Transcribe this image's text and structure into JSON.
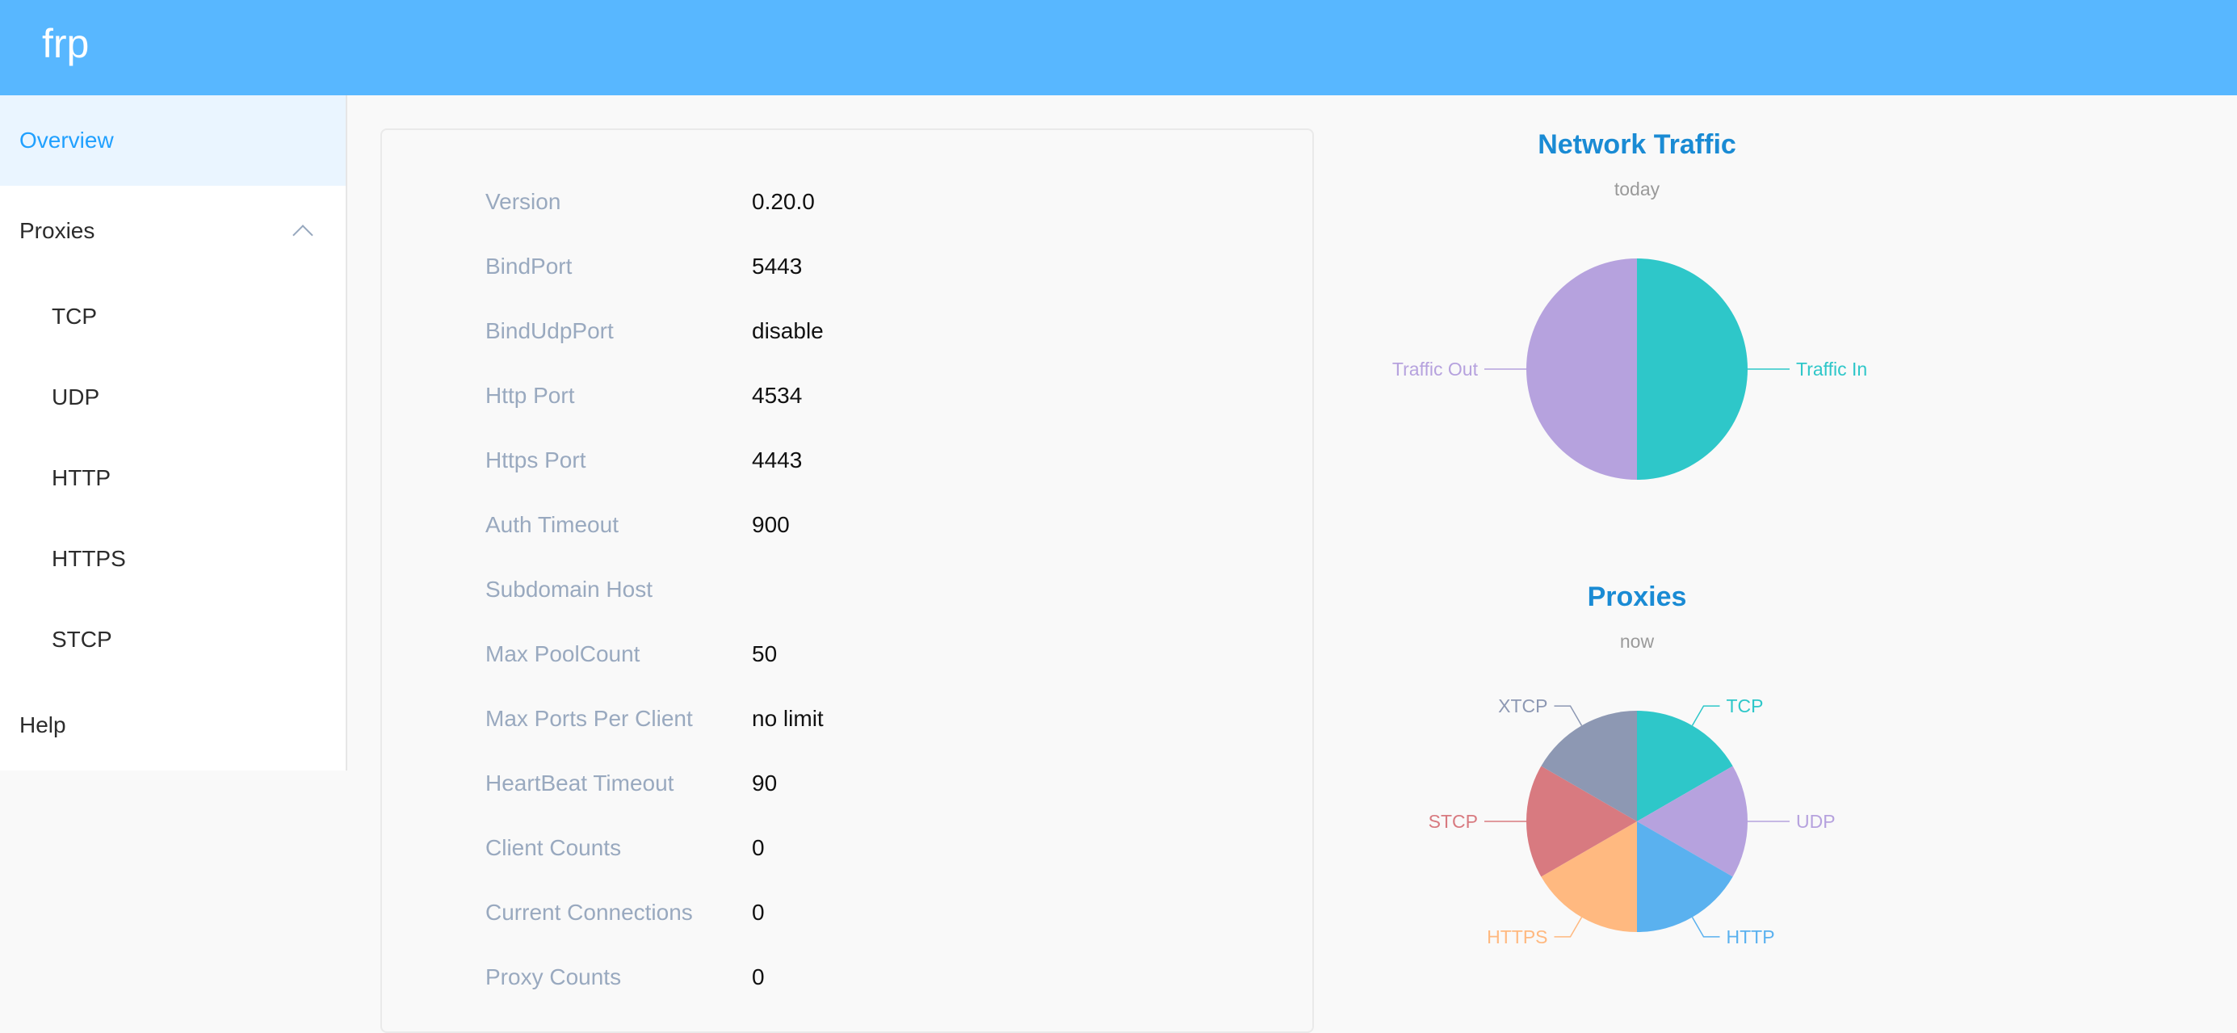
{
  "header": {
    "logo": "frp"
  },
  "sidebar": {
    "items": [
      {
        "label": "Overview"
      },
      {
        "label": "Proxies"
      },
      {
        "label": "TCP"
      },
      {
        "label": "UDP"
      },
      {
        "label": "HTTP"
      },
      {
        "label": "HTTPS"
      },
      {
        "label": "STCP"
      },
      {
        "label": "Help"
      }
    ]
  },
  "server_info": {
    "rows": [
      {
        "label": "Version",
        "value": "0.20.0"
      },
      {
        "label": "BindPort",
        "value": "5443"
      },
      {
        "label": "BindUdpPort",
        "value": "disable"
      },
      {
        "label": "Http Port",
        "value": "4534"
      },
      {
        "label": "Https Port",
        "value": "4443"
      },
      {
        "label": "Auth Timeout",
        "value": "900"
      },
      {
        "label": "Subdomain Host",
        "value": ""
      },
      {
        "label": "Max PoolCount",
        "value": "50"
      },
      {
        "label": "Max Ports Per Client",
        "value": "no limit"
      },
      {
        "label": "HeartBeat Timeout",
        "value": "90"
      },
      {
        "label": "Client Counts",
        "value": "0"
      },
      {
        "label": "Current Connections",
        "value": "0"
      },
      {
        "label": "Proxy Counts",
        "value": "0"
      }
    ]
  },
  "chart_data": [
    {
      "type": "pie",
      "title": "Network Traffic",
      "subtitle": "today",
      "slices": [
        {
          "label": "Traffic In",
          "value": 1,
          "color": "#2ec7c9"
        },
        {
          "label": "Traffic Out",
          "value": 1,
          "color": "#b6a2de"
        }
      ]
    },
    {
      "type": "pie",
      "title": "Proxies",
      "subtitle": "now",
      "slices": [
        {
          "label": "TCP",
          "value": 1,
          "color": "#2ec7c9"
        },
        {
          "label": "UDP",
          "value": 1,
          "color": "#b6a2de"
        },
        {
          "label": "HTTP",
          "value": 1,
          "color": "#5ab1ef"
        },
        {
          "label": "HTTPS",
          "value": 1,
          "color": "#ffb980"
        },
        {
          "label": "STCP",
          "value": 1,
          "color": "#d87a80"
        },
        {
          "label": "XTCP",
          "value": 1,
          "color": "#8d98b3"
        }
      ]
    }
  ]
}
